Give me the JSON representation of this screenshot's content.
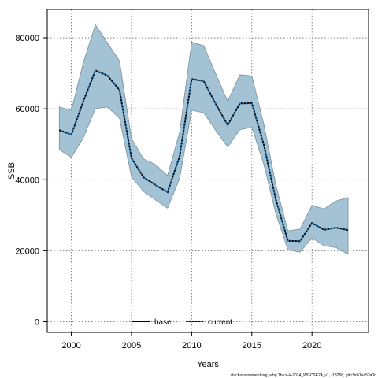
{
  "chart_data": {
    "type": "line",
    "title": "",
    "xlabel": "Years",
    "ylabel": "SSB",
    "xlim": [
      1998.0,
      2024.7
    ],
    "ylim": [
      -3000,
      88000
    ],
    "xticks": [
      2000,
      2005,
      2010,
      2015,
      2020
    ],
    "yticks": [
      0,
      20000,
      40000,
      60000,
      80000
    ],
    "grid": true,
    "legend_position": "bottom-center",
    "band_color": "#a3c3d5",
    "band_edge_color": "#7a8f9b",
    "x": [
      1999,
      2000,
      2001,
      2002,
      2003,
      2004,
      2005,
      2006,
      2007,
      2008,
      2009,
      2010,
      2011,
      2012,
      2013,
      2014,
      2015,
      2016,
      2017,
      2018,
      2019,
      2020,
      2021,
      2022,
      2023
    ],
    "band_upper": [
      60500,
      59600,
      73000,
      83700,
      78600,
      73500,
      51600,
      45900,
      44300,
      41200,
      53400,
      78800,
      77800,
      69900,
      62100,
      69600,
      69300,
      55600,
      38500,
      25600,
      26100,
      32800,
      31800,
      34000,
      35000
    ],
    "band_lower": [
      48500,
      46300,
      51800,
      60100,
      60500,
      57400,
      40800,
      36700,
      34300,
      32000,
      40400,
      59600,
      58900,
      53900,
      49200,
      54100,
      54800,
      44300,
      30400,
      20300,
      19600,
      23600,
      21400,
      20900,
      19000
    ],
    "series": [
      {
        "name": "base",
        "color": "#000000",
        "style": "solid",
        "values": [
          null,
          null,
          null,
          null,
          null,
          null,
          null,
          null,
          null,
          null,
          null,
          null,
          null,
          null,
          null,
          null,
          null,
          null,
          null,
          null,
          null,
          null,
          null,
          null,
          null
        ]
      },
      {
        "name": "current",
        "color": "#000000",
        "style": "dotted",
        "dot_color": "#1f6fa8",
        "values": [
          54000,
          52700,
          62100,
          70800,
          69400,
          65300,
          46100,
          40700,
          38500,
          36500,
          46600,
          68400,
          67800,
          61400,
          55400,
          61500,
          61600,
          49800,
          34400,
          22800,
          22700,
          27800,
          25900,
          26500,
          25800
        ]
      }
    ],
    "footnote": "stockassessment.org, whg.7b-ce-k-2024_WGCSE24_v1, r18258, git:c9c61ac53a0d"
  }
}
